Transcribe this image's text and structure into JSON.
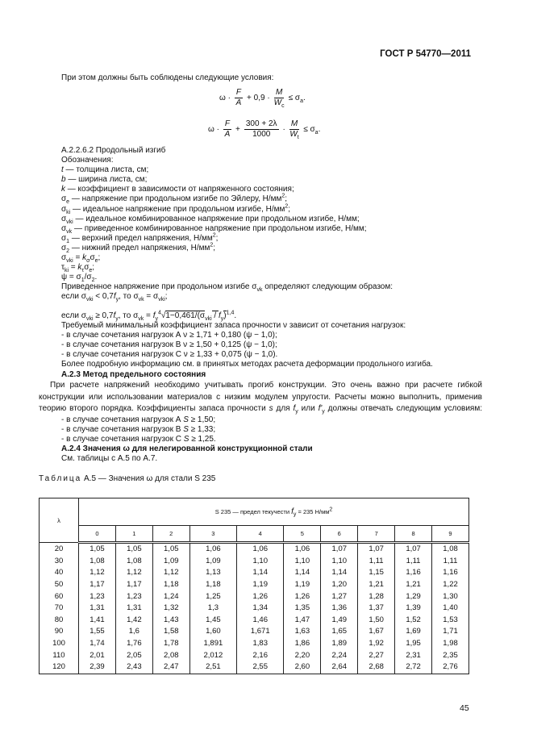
{
  "header": {
    "doc_id": "ГОСТ Р 54770—2011"
  },
  "intro": "При этом должны быть соблюдены следующие условия:",
  "formula1": {
    "omega": "ω ·",
    "num1": "F",
    "den1": "A",
    "mid": "+ 0,9 ·",
    "num2": "M",
    "den2": "W",
    "den2_sub": "c",
    "rhs": "≤ σ",
    "rhs_sub": "a",
    "end": "."
  },
  "formula2": {
    "omega": "ω ·",
    "num1": "F",
    "den1": "A",
    "mid": "+",
    "num2": "300 + 2λ",
    "den2": "1000",
    "mid2": "·",
    "num3": "M",
    "den3": "W",
    "den3_sub": "t",
    "rhs": "≤ σ",
    "rhs_sub": "a",
    "end": "."
  },
  "block1": [
    [
      "А.2.2.6.2  Продольный изгиб"
    ],
    [
      "Обозначения:"
    ],
    [
      [
        "i",
        "t"
      ],
      " — толщина листа, см;"
    ],
    [
      [
        "i",
        "b"
      ],
      " — ширина листа, см;"
    ],
    [
      [
        "i",
        "k"
      ],
      " — коэффициент в зависимости от напряженного состояния;"
    ],
    [
      "σ",
      [
        "sub",
        "e"
      ],
      " — напряжение при продольном изгибе по Эйлеру, Н/мм",
      [
        "sup",
        "2"
      ],
      ";"
    ],
    [
      "σ",
      [
        "sub",
        "ki"
      ],
      " — идеальное напряжение при продольном изгибе, Н/мм",
      [
        "sup",
        "2"
      ],
      ";"
    ],
    [
      "σ",
      [
        "sub",
        "vki"
      ],
      " — идеальное комбинированное напряжение при продольном изгибе, Н/мм;"
    ],
    [
      "σ",
      [
        "sub",
        "vk"
      ],
      " — приведенное комбинированное напряжение при продольном изгибе, Н/мм;"
    ],
    [
      "σ",
      [
        "sub",
        "1"
      ],
      " — верхний предел напряжения, Н/мм",
      [
        "sup",
        "2"
      ],
      ";"
    ],
    [
      "σ",
      [
        "sub",
        "2"
      ],
      " — нижний предел напряжения, Н/мм",
      [
        "sup",
        "2"
      ],
      ";"
    ],
    [
      "σ",
      [
        "sub",
        "vki"
      ],
      " = ",
      [
        "i",
        "k"
      ],
      [
        "sub",
        "σ"
      ],
      "σ",
      [
        "sub",
        "e"
      ],
      ";"
    ],
    [
      "τ",
      [
        "sub",
        "ki"
      ],
      " = ",
      [
        "i",
        "k"
      ],
      [
        "sub",
        "τ"
      ],
      "σ",
      [
        "sub",
        "e"
      ],
      ";"
    ],
    [
      "ψ = σ",
      [
        "sub",
        "1"
      ],
      "/σ",
      [
        "sub",
        "2"
      ],
      "."
    ],
    [
      "Приведенное напряжение при продольном изгибе σ",
      [
        "sub",
        "vk"
      ],
      " определяют следующим образом:"
    ],
    [
      "если σ",
      [
        "sub",
        "vki"
      ],
      " < 0,7",
      [
        "i",
        "f"
      ],
      [
        "sub",
        "y"
      ],
      ", то σ",
      [
        "sub",
        "vk"
      ],
      " = σ",
      [
        "sub",
        "vki"
      ],
      ";"
    ]
  ],
  "block2": [
    [
      "если σ",
      [
        "sub",
        "vki"
      ],
      " ≥ 0,7",
      [
        "i",
        "f"
      ],
      [
        "sub",
        "y"
      ],
      ", то  σ",
      [
        "sub",
        "vk"
      ],
      " = ",
      [
        "i",
        "f"
      ],
      [
        "sub",
        "y"
      ],
      [
        "sup",
        "4"
      ],
      "√",
      [
        "over",
        "1−0,461/(σ"
      ],
      [
        "sub",
        "vki"
      ],
      [
        "over",
        " / "
      ],
      [
        "i",
        "f"
      ],
      [
        "sub",
        "y"
      ],
      [
        "over",
        ")"
      ],
      [
        "sup",
        "1,4"
      ],
      "."
    ],
    [
      "Требуемый минимальный коэффициент запаса прочности ν зависит от сочетания нагрузок:"
    ],
    [
      "- в случае сочетания нагрузок А ν ≥ 1,71 + 0,180 (ψ − 1,0);"
    ],
    [
      "- в случае сочетания нагрузок В ν ≥ 1,50 + 0,125 (ψ − 1,0);"
    ],
    [
      "- в случае сочетания нагрузок С ν ≥ 1,33 + 0,075 (ψ − 1,0)."
    ],
    [
      "Более подробную информацию см. в принятых методах расчета деформации продольного изгиба."
    ],
    [
      [
        "b",
        "А.2.3  Метод предельного состояния"
      ]
    ]
  ],
  "para": [
    [
      "При расчете напряжений необходимо учитывать прогиб конструкции. Это очень важно при расчете гибкой"
    ],
    [
      "конструкции или использовании материалов с низким модулем упругости. Расчеты можно выполнить, применив"
    ],
    [
      "теорию второго порядка. Коэффициенты запаса прочности ",
      [
        "i",
        "s"
      ],
      " для ",
      [
        "i",
        "f"
      ],
      [
        "sub",
        "y"
      ],
      " или ",
      [
        "i",
        "f'"
      ],
      [
        "sub",
        "y"
      ],
      " должны отвечать следующим условиям:"
    ]
  ],
  "block3": [
    [
      "- в случае сочетания нагрузок А ",
      [
        "i",
        "S"
      ],
      " ≥ 1,50;"
    ],
    [
      "- в случае сочетания нагрузок В ",
      [
        "i",
        "S"
      ],
      " ≥ 1,33;"
    ],
    [
      "- в случае сочетания нагрузок С ",
      [
        "i",
        "S"
      ],
      " ≥ 1,25."
    ],
    [
      [
        "b",
        "А.2.4  Значения ω для нелегированной конструкционной стали"
      ]
    ],
    [
      "См. таблицы с А.5 по А.7."
    ]
  ],
  "table": {
    "caption_prefix": "Таблица",
    "caption": " А.5 — Значения ω для стали S 235",
    "lambda_header": "λ",
    "group_header": "S 235 — предел текучести ",
    "group_fy": "f",
    "group_fy_sub": "y",
    "group_rest": " = 235 Н/мм",
    "group_sup": "2",
    "columns": [
      "0",
      "1",
      "2",
      "3",
      "4",
      "5",
      "6",
      "7",
      "8",
      "9"
    ],
    "rows": [
      {
        "lambda": "20",
        "values": [
          "1,05",
          "1,05",
          "1,05",
          "1,06",
          "1,06",
          "1,06",
          "1,07",
          "1,07",
          "1,07",
          "1,08"
        ]
      },
      {
        "lambda": "30",
        "values": [
          "1,08",
          "1,08",
          "1,09",
          "1,09",
          "1,10",
          "1,10",
          "1,10",
          "1,11",
          "1,11",
          "1,11"
        ]
      },
      {
        "lambda": "40",
        "values": [
          "1,12",
          "1,12",
          "1,12",
          "1,13",
          "1,14",
          "1,14",
          "1,14",
          "1,15",
          "1,16",
          "1,16"
        ]
      },
      {
        "lambda": "50",
        "values": [
          "1,17",
          "1,17",
          "1,18",
          "1,18",
          "1,19",
          "1,19",
          "1,20",
          "1,21",
          "1,21",
          "1,22"
        ]
      },
      {
        "lambda": "60",
        "values": [
          "1,23",
          "1,23",
          "1,24",
          "1,25",
          "1,26",
          "1,26",
          "1,27",
          "1,28",
          "1,29",
          "1,30"
        ]
      },
      {
        "lambda": "70",
        "values": [
          "1,31",
          "1,31",
          "1,32",
          "1,3",
          "1,34",
          "1,35",
          "1,36",
          "1,37",
          "1,39",
          "1,40"
        ]
      },
      {
        "lambda": "80",
        "values": [
          "1,41",
          "1,42",
          "1,43",
          "1,45",
          "1,46",
          "1,47",
          "1,49",
          "1,50",
          "1,52",
          "1,53"
        ]
      },
      {
        "lambda": "90",
        "values": [
          "1,55",
          "1,6",
          "1,58",
          "1,60",
          "1,671",
          "1,63",
          "1,65",
          "1,67",
          "1,69",
          "1,71"
        ]
      },
      {
        "lambda": "100",
        "values": [
          "1,74",
          "1,76",
          "1,78",
          "1,891",
          "1,83",
          "1,86",
          "1,89",
          "1,92",
          "1,95",
          "1,98"
        ]
      },
      {
        "lambda": "110",
        "values": [
          "2,01",
          "2,05",
          "2,08",
          "2,012",
          "2,16",
          "2,20",
          "2,24",
          "2,27",
          "2,31",
          "2,35"
        ]
      },
      {
        "lambda": "120",
        "values": [
          "2,39",
          "2,43",
          "2,47",
          "2,51",
          "2,55",
          "2,60",
          "2,64",
          "2,68",
          "2,72",
          "2,76"
        ]
      }
    ]
  },
  "page_number": "45"
}
